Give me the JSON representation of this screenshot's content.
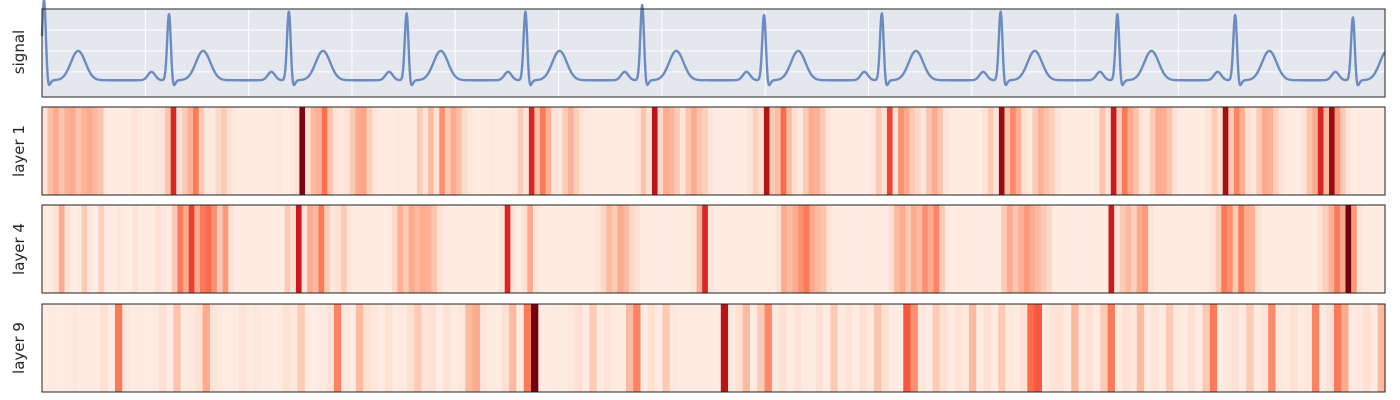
{
  "chart_data": {
    "type": "heatmap",
    "panels": [
      {
        "name": "signal",
        "kind": "line",
        "label": "signal",
        "grid": true,
        "line_color": "#6b8cc0",
        "background": "#e5e7ef",
        "beats": [
          0.2,
          12.3,
          23.9,
          35.3,
          46.8,
          58.1,
          69.9,
          81.3,
          92.8,
          104.1,
          115.5,
          126.9
        ],
        "beat_amps": [
          0.98,
          0.81,
          0.84,
          0.82,
          0.84,
          0.92,
          0.8,
          0.82,
          0.84,
          0.81,
          0.8,
          0.77
        ],
        "xlim": [
          0,
          130
        ]
      },
      {
        "name": "layer 1",
        "kind": "heatmap",
        "label": "layer 1",
        "colormap": "Reds",
        "values": [
          0.1,
          0.24,
          0.3,
          0.22,
          0.28,
          0.3,
          0.22,
          0.27,
          0.3,
          0.25,
          0.22,
          0.06,
          0.05,
          0.06,
          0.05,
          0.05,
          0.1,
          0.07,
          0.05,
          0.06,
          0.08,
          0.1,
          0.22,
          0.7,
          0.1,
          0.2,
          0.28,
          0.45,
          0.2,
          0.08,
          0.07,
          0.15,
          0.2,
          0.12,
          0.07,
          0.06,
          0.05,
          0.06,
          0.05,
          0.06,
          0.05,
          0.06,
          0.07,
          0.05,
          0.06,
          0.1,
          0.96,
          0.12,
          0.25,
          0.28,
          0.48,
          0.22,
          0.1,
          0.08,
          0.1,
          0.2,
          0.3,
          0.32,
          0.18,
          0.09,
          0.06,
          0.05,
          0.06,
          0.07,
          0.06,
          0.05,
          0.06,
          0.2,
          0.1,
          0.25,
          0.12,
          0.38,
          0.2,
          0.3,
          0.24,
          0.14,
          0.08,
          0.06,
          0.05,
          0.06,
          0.07,
          0.05,
          0.06,
          0.05,
          0.08,
          0.2,
          0.1,
          0.7,
          0.22,
          0.45,
          0.28,
          0.1,
          0.08,
          0.2,
          0.28,
          0.18,
          0.1,
          0.07,
          0.06,
          0.05,
          0.06,
          0.05,
          0.06,
          0.05,
          0.05,
          0.06,
          0.1,
          0.22,
          0.1,
          0.8,
          0.15,
          0.3,
          0.26,
          0.2,
          0.09,
          0.22,
          0.3,
          0.22,
          0.18,
          0.09,
          0.06,
          0.05,
          0.06,
          0.05,
          0.06,
          0.05,
          0.1,
          0.18,
          0.12,
          0.82,
          0.2,
          0.24,
          0.5,
          0.25,
          0.12,
          0.08,
          0.2,
          0.3,
          0.28,
          0.2,
          0.1,
          0.06,
          0.05,
          0.06,
          0.05,
          0.06,
          0.05,
          0.06,
          0.08,
          0.2,
          0.12,
          0.6,
          0.1,
          0.38,
          0.3,
          0.2,
          0.15,
          0.08,
          0.22,
          0.3,
          0.22,
          0.1,
          0.06,
          0.05,
          0.06,
          0.05,
          0.06,
          0.05,
          0.1,
          0.2,
          0.1,
          0.9,
          0.22,
          0.4,
          0.28,
          0.12,
          0.08,
          0.2,
          0.28,
          0.22,
          0.18,
          0.1,
          0.06,
          0.05,
          0.06,
          0.05,
          0.06,
          0.05,
          0.08,
          0.22,
          0.1,
          0.75,
          0.2,
          0.45,
          0.3,
          0.22,
          0.1,
          0.08,
          0.2,
          0.3,
          0.28,
          0.22,
          0.1,
          0.06,
          0.05,
          0.06,
          0.05,
          0.06,
          0.1,
          0.2,
          0.12,
          0.88,
          0.2,
          0.42,
          0.28,
          0.12,
          0.08,
          0.2,
          0.3,
          0.28,
          0.18,
          0.1,
          0.06,
          0.05,
          0.06,
          0.1,
          0.22,
          0.3,
          0.7,
          0.25,
          0.9,
          0.35,
          0.2,
          0.08,
          0.06,
          0.05,
          0.06,
          0.05,
          0.06,
          0.05
        ]
      },
      {
        "name": "layer 4",
        "kind": "heatmap",
        "label": "layer 4",
        "colormap": "Reds",
        "values": [
          0.05,
          0.06,
          0.12,
          0.3,
          0.1,
          0.06,
          0.05,
          0.2,
          0.08,
          0.05,
          0.18,
          0.06,
          0.05,
          0.08,
          0.06,
          0.05,
          0.1,
          0.05,
          0.06,
          0.05,
          0.12,
          0.08,
          0.06,
          0.2,
          0.45,
          0.3,
          0.62,
          0.3,
          0.45,
          0.5,
          0.38,
          0.2,
          0.35,
          0.12,
          0.06,
          0.05,
          0.06,
          0.05,
          0.05,
          0.06,
          0.05,
          0.06,
          0.05,
          0.2,
          0.12,
          0.75,
          0.1,
          0.3,
          0.25,
          0.45,
          0.2,
          0.08,
          0.12,
          0.2,
          0.08,
          0.06,
          0.05,
          0.06,
          0.05,
          0.06,
          0.05,
          0.06,
          0.15,
          0.28,
          0.2,
          0.3,
          0.25,
          0.3,
          0.28,
          0.22,
          0.12,
          0.06,
          0.05,
          0.06,
          0.05,
          0.06,
          0.05,
          0.06,
          0.05,
          0.06,
          0.05,
          0.1,
          0.7,
          0.1,
          0.05,
          0.12,
          0.3,
          0.1,
          0.06,
          0.05,
          0.06,
          0.05,
          0.06,
          0.05,
          0.06,
          0.05,
          0.05,
          0.06,
          0.1,
          0.15,
          0.25,
          0.2,
          0.3,
          0.25,
          0.15,
          0.12,
          0.06,
          0.05,
          0.06,
          0.05,
          0.06,
          0.05,
          0.06,
          0.05,
          0.06,
          0.1,
          0.28,
          0.7,
          0.1,
          0.06,
          0.05,
          0.06,
          0.05,
          0.06,
          0.05,
          0.06,
          0.05,
          0.05,
          0.06,
          0.05,
          0.12,
          0.3,
          0.25,
          0.3,
          0.38,
          0.45,
          0.3,
          0.25,
          0.22,
          0.1,
          0.06,
          0.05,
          0.06,
          0.05,
          0.06,
          0.05,
          0.06,
          0.05,
          0.06,
          0.05,
          0.12,
          0.25,
          0.3,
          0.2,
          0.3,
          0.25,
          0.38,
          0.3,
          0.42,
          0.2,
          0.06,
          0.05,
          0.06,
          0.05,
          0.06,
          0.05,
          0.06,
          0.05,
          0.06,
          0.05,
          0.2,
          0.3,
          0.22,
          0.28,
          0.35,
          0.3,
          0.25,
          0.2,
          0.15,
          0.06,
          0.05,
          0.06,
          0.05,
          0.06,
          0.05,
          0.06,
          0.05,
          0.06,
          0.05,
          0.75,
          0.1,
          0.2,
          0.25,
          0.18,
          0.3,
          0.35,
          0.1,
          0.06,
          0.05,
          0.06,
          0.05,
          0.06,
          0.05,
          0.06,
          0.05,
          0.06,
          0.05,
          0.1,
          0.2,
          0.45,
          0.38,
          0.2,
          0.45,
          0.3,
          0.28,
          0.12,
          0.06,
          0.05,
          0.06,
          0.05,
          0.06,
          0.05,
          0.06,
          0.05,
          0.06,
          0.05,
          0.12,
          0.18,
          0.28,
          0.45,
          0.3,
          0.98,
          0.35,
          0.1,
          0.06,
          0.05,
          0.06,
          0.05
        ]
      },
      {
        "name": "layer 9",
        "kind": "heatmap",
        "label": "layer 9",
        "colormap": "Reds",
        "values": [
          0.05,
          0.06,
          0.05,
          0.06,
          0.08,
          0.06,
          0.05,
          0.06,
          0.12,
          0.06,
          0.45,
          0.08,
          0.05,
          0.06,
          0.05,
          0.06,
          0.12,
          0.06,
          0.22,
          0.06,
          0.08,
          0.12,
          0.3,
          0.1,
          0.06,
          0.05,
          0.06,
          0.1,
          0.06,
          0.08,
          0.06,
          0.05,
          0.06,
          0.12,
          0.08,
          0.2,
          0.06,
          0.05,
          0.06,
          0.1,
          0.42,
          0.08,
          0.06,
          0.25,
          0.12,
          0.08,
          0.06,
          0.12,
          0.05,
          0.06,
          0.12,
          0.2,
          0.1,
          0.12,
          0.05,
          0.1,
          0.06,
          0.08,
          0.25,
          0.3,
          0.1,
          0.06,
          0.05,
          0.12,
          0.25,
          0.06,
          0.45,
          0.98,
          0.06,
          0.05,
          0.06,
          0.05,
          0.08,
          0.12,
          0.06,
          0.2,
          0.06,
          0.1,
          0.06,
          0.05,
          0.25,
          0.42,
          0.06,
          0.12,
          0.06,
          0.2,
          0.08,
          0.06,
          0.05,
          0.06,
          0.05,
          0.06,
          0.05,
          0.82,
          0.06,
          0.12,
          0.25,
          0.06,
          0.2,
          0.4,
          0.08,
          0.12,
          0.06,
          0.1,
          0.06,
          0.05,
          0.12,
          0.06,
          0.2,
          0.06,
          0.1,
          0.06,
          0.12,
          0.08,
          0.22,
          0.12,
          0.06,
          0.05,
          0.55,
          0.38,
          0.08,
          0.06,
          0.2,
          0.12,
          0.06,
          0.1,
          0.08,
          0.25,
          0.06,
          0.12,
          0.06,
          0.2,
          0.08,
          0.06,
          0.12,
          0.5,
          0.55,
          0.06,
          0.1,
          0.12,
          0.06,
          0.25,
          0.08,
          0.12,
          0.06,
          0.2,
          0.45,
          0.06,
          0.12,
          0.08,
          0.25,
          0.06,
          0.1,
          0.06,
          0.2,
          0.08,
          0.06,
          0.12,
          0.06,
          0.2,
          0.45,
          0.06,
          0.08,
          0.12,
          0.06,
          0.2,
          0.06,
          0.1,
          0.4,
          0.08,
          0.06,
          0.12,
          0.06,
          0.08,
          0.42,
          0.06,
          0.12,
          0.45,
          0.3,
          0.06,
          0.08,
          0.12,
          0.06,
          0.25
        ]
      }
    ]
  }
}
